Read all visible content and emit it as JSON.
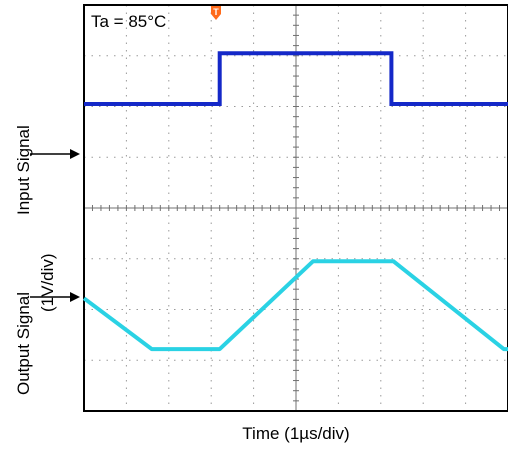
{
  "chart_data": {
    "type": "line",
    "annotation": "Ta = 85°C",
    "trigger_marker": "T",
    "xlabel": "Time (1µs/div)",
    "ylabel_input": "Input Signal",
    "ylabel_output": "Output Signal",
    "ylabel_scale": "(1V/div)",
    "divisions_x": 10,
    "divisions_y": 8,
    "grid": true,
    "xlim": [
      0,
      10
    ],
    "colors": {
      "input": "#1428c8",
      "output": "#2ad2e4",
      "trigger": "#ff6a1a"
    },
    "series": [
      {
        "x": [
          0,
          3.2,
          3.2,
          7.25,
          7.25,
          10
        ],
        "y": [
          6.05,
          6.05,
          7.05,
          7.05,
          6.05,
          6.05
        ]
      },
      {
        "x": [
          0,
          1.6,
          3.2,
          5.4,
          7.3,
          9.9,
          10
        ],
        "y": [
          2.22,
          1.22,
          1.22,
          2.95,
          2.95,
          1.22,
          1.22
        ]
      }
    ]
  }
}
